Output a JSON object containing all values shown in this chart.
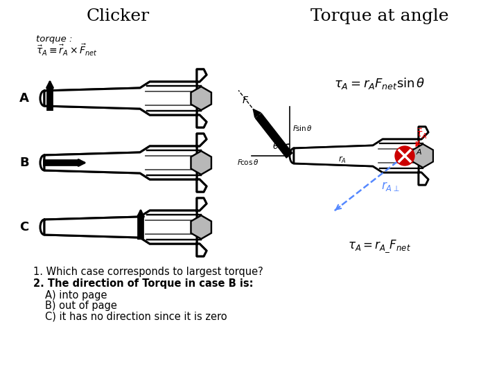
{
  "title_left": "Clicker",
  "title_right": "Torque at angle",
  "background_color": "#ffffff",
  "label_A": "A",
  "label_B": "B",
  "label_C": "C",
  "question1": "1. Which case corresponds to largest torque?",
  "question2": "2. The direction of Torque in case B is:",
  "answer_A": "A) into page",
  "answer_B": "B) out of page",
  "answer_C": "C) it has no direction since it is zero",
  "right_formula1": "$\\tau_A = r_A F_{net} \\sin\\theta$",
  "right_formula2": "$\\tau_A = r_{A\\_} F_{net}$",
  "right_label_rAperp": "$r_{A\\perp}$",
  "right_label_rA": "$r_A$",
  "blue_dashed_color": "#5588ff",
  "red_circle_color": "#cc0000",
  "text_color": "#000000"
}
